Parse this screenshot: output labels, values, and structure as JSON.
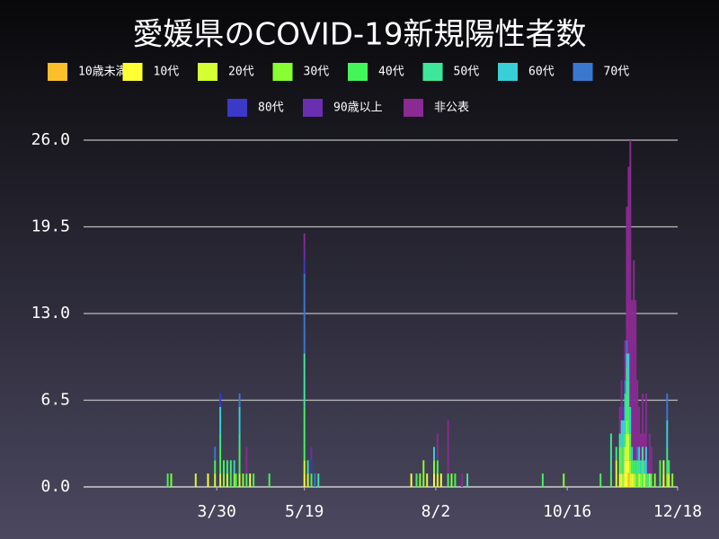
{
  "chart_data": {
    "type": "stacked-bar",
    "title": "愛媛県のCOVID-19新規陽性者数",
    "xlim": [
      14,
      353
    ],
    "xticks": [
      {
        "value": 90,
        "label": "3/30"
      },
      {
        "value": 140,
        "label": "5/19"
      },
      {
        "value": 215,
        "label": "8/2"
      },
      {
        "value": 290,
        "label": "10/16"
      },
      {
        "value": 353,
        "label": "12/18"
      }
    ],
    "ylim": [
      0,
      26
    ],
    "yticks": [
      {
        "value": 0,
        "label": "0.0"
      },
      {
        "value": 6.5,
        "label": "6.5"
      },
      {
        "value": 13,
        "label": "13.0"
      },
      {
        "value": 19.5,
        "label": "19.5"
      },
      {
        "value": 26,
        "label": "26.0"
      }
    ],
    "grid": true,
    "series": [
      {
        "name": "10歳未満",
        "color": "#fbbf2a",
        "x": [
          325
        ],
        "values": [
          1
        ]
      },
      {
        "name": "10代",
        "color": "#ffff33",
        "x": [
          85,
          109,
          140,
          201,
          214,
          218,
          320,
          323,
          324,
          325,
          327,
          345
        ],
        "values": [
          1,
          1,
          1,
          1,
          1,
          1,
          1,
          2,
          2,
          1,
          1,
          1
        ]
      },
      {
        "name": "20代",
        "color": "#d4ff33",
        "x": [
          78,
          89,
          92,
          96,
          103,
          140,
          142,
          210,
          216,
          318,
          321,
          323,
          324,
          325,
          326,
          328,
          331,
          334,
          337,
          345,
          348
        ],
        "values": [
          1,
          1,
          1,
          1,
          1,
          1,
          1,
          1,
          1,
          2,
          1,
          1,
          2,
          2,
          1,
          1,
          1,
          1,
          1,
          1,
          1
        ]
      },
      {
        "name": "30代",
        "color": "#88ff33",
        "x": [
          64,
          94,
          100,
          105,
          206,
          208,
          214,
          224,
          288,
          320,
          322,
          324,
          326,
          329,
          332,
          340,
          347,
          350
        ],
        "values": [
          1,
          1,
          1,
          1,
          1,
          2,
          1,
          1,
          1,
          2,
          1,
          1,
          1,
          1,
          1,
          1,
          1,
          1
        ]
      },
      {
        "name": "40代",
        "color": "#44f55a",
        "x": [
          62,
          89,
          92,
          94,
          98,
          101,
          103,
          107,
          111,
          120,
          140,
          144,
          204,
          216,
          222,
          226,
          276,
          309,
          315,
          321,
          323,
          324,
          325,
          326,
          327,
          328,
          330,
          333,
          335,
          338,
          343,
          348
        ],
        "values": [
          1,
          1,
          2,
          1,
          2,
          1,
          2,
          1,
          1,
          1,
          4,
          1,
          1,
          1,
          1,
          1,
          1,
          1,
          1,
          2,
          1,
          2,
          2,
          2,
          1,
          1,
          2,
          2,
          1,
          1,
          2,
          1
        ]
      },
      {
        "name": "50代",
        "color": "#3ee69a",
        "x": [
          92,
          96,
          103,
          140,
          142,
          148,
          233,
          315,
          318,
          320,
          322,
          324,
          325,
          329,
          331,
          333,
          336,
          347
        ],
        "values": [
          1,
          1,
          1,
          4,
          1,
          1,
          1,
          3,
          1,
          1,
          2,
          2,
          2,
          1,
          1,
          1,
          1,
          2
        ]
      },
      {
        "name": "60代",
        "color": "#38cfd8",
        "x": [
          92,
          100,
          103,
          214,
          321,
          322,
          323,
          324,
          325,
          326,
          327,
          331,
          332,
          334,
          335,
          347
        ],
        "values": [
          2,
          1,
          2,
          1,
          2,
          2,
          3,
          1,
          2,
          2,
          1,
          1,
          1,
          1,
          2,
          2
        ]
      },
      {
        "name": "70代",
        "color": "#3a78d0",
        "x": [
          89,
          103,
          140,
          146,
          323,
          324,
          330,
          347
        ],
        "values": [
          1,
          1,
          6,
          1,
          1,
          1,
          1,
          2
        ]
      },
      {
        "name": "80代",
        "color": "#3c38c8",
        "x": [
          92,
          140,
          144,
          322
        ],
        "values": [
          1,
          1,
          1,
          1
        ]
      },
      {
        "name": "90歳以上",
        "color": "#6a2fb0",
        "x": [
          140,
          144
        ],
        "values": [
          1,
          1
        ]
      },
      {
        "name": "非公表",
        "color": "#8a2a92",
        "x": [
          107,
          140,
          216,
          222,
          230,
          320,
          321,
          323,
          324,
          325,
          326,
          327,
          328,
          329,
          330,
          331,
          332,
          333,
          334,
          335,
          336,
          337,
          338
        ],
        "values": [
          2,
          1,
          2,
          4,
          1,
          2,
          3,
          3,
          10,
          14,
          20,
          11,
          15,
          12,
          5,
          3,
          2,
          4,
          2,
          4,
          1,
          3,
          2
        ]
      }
    ]
  }
}
